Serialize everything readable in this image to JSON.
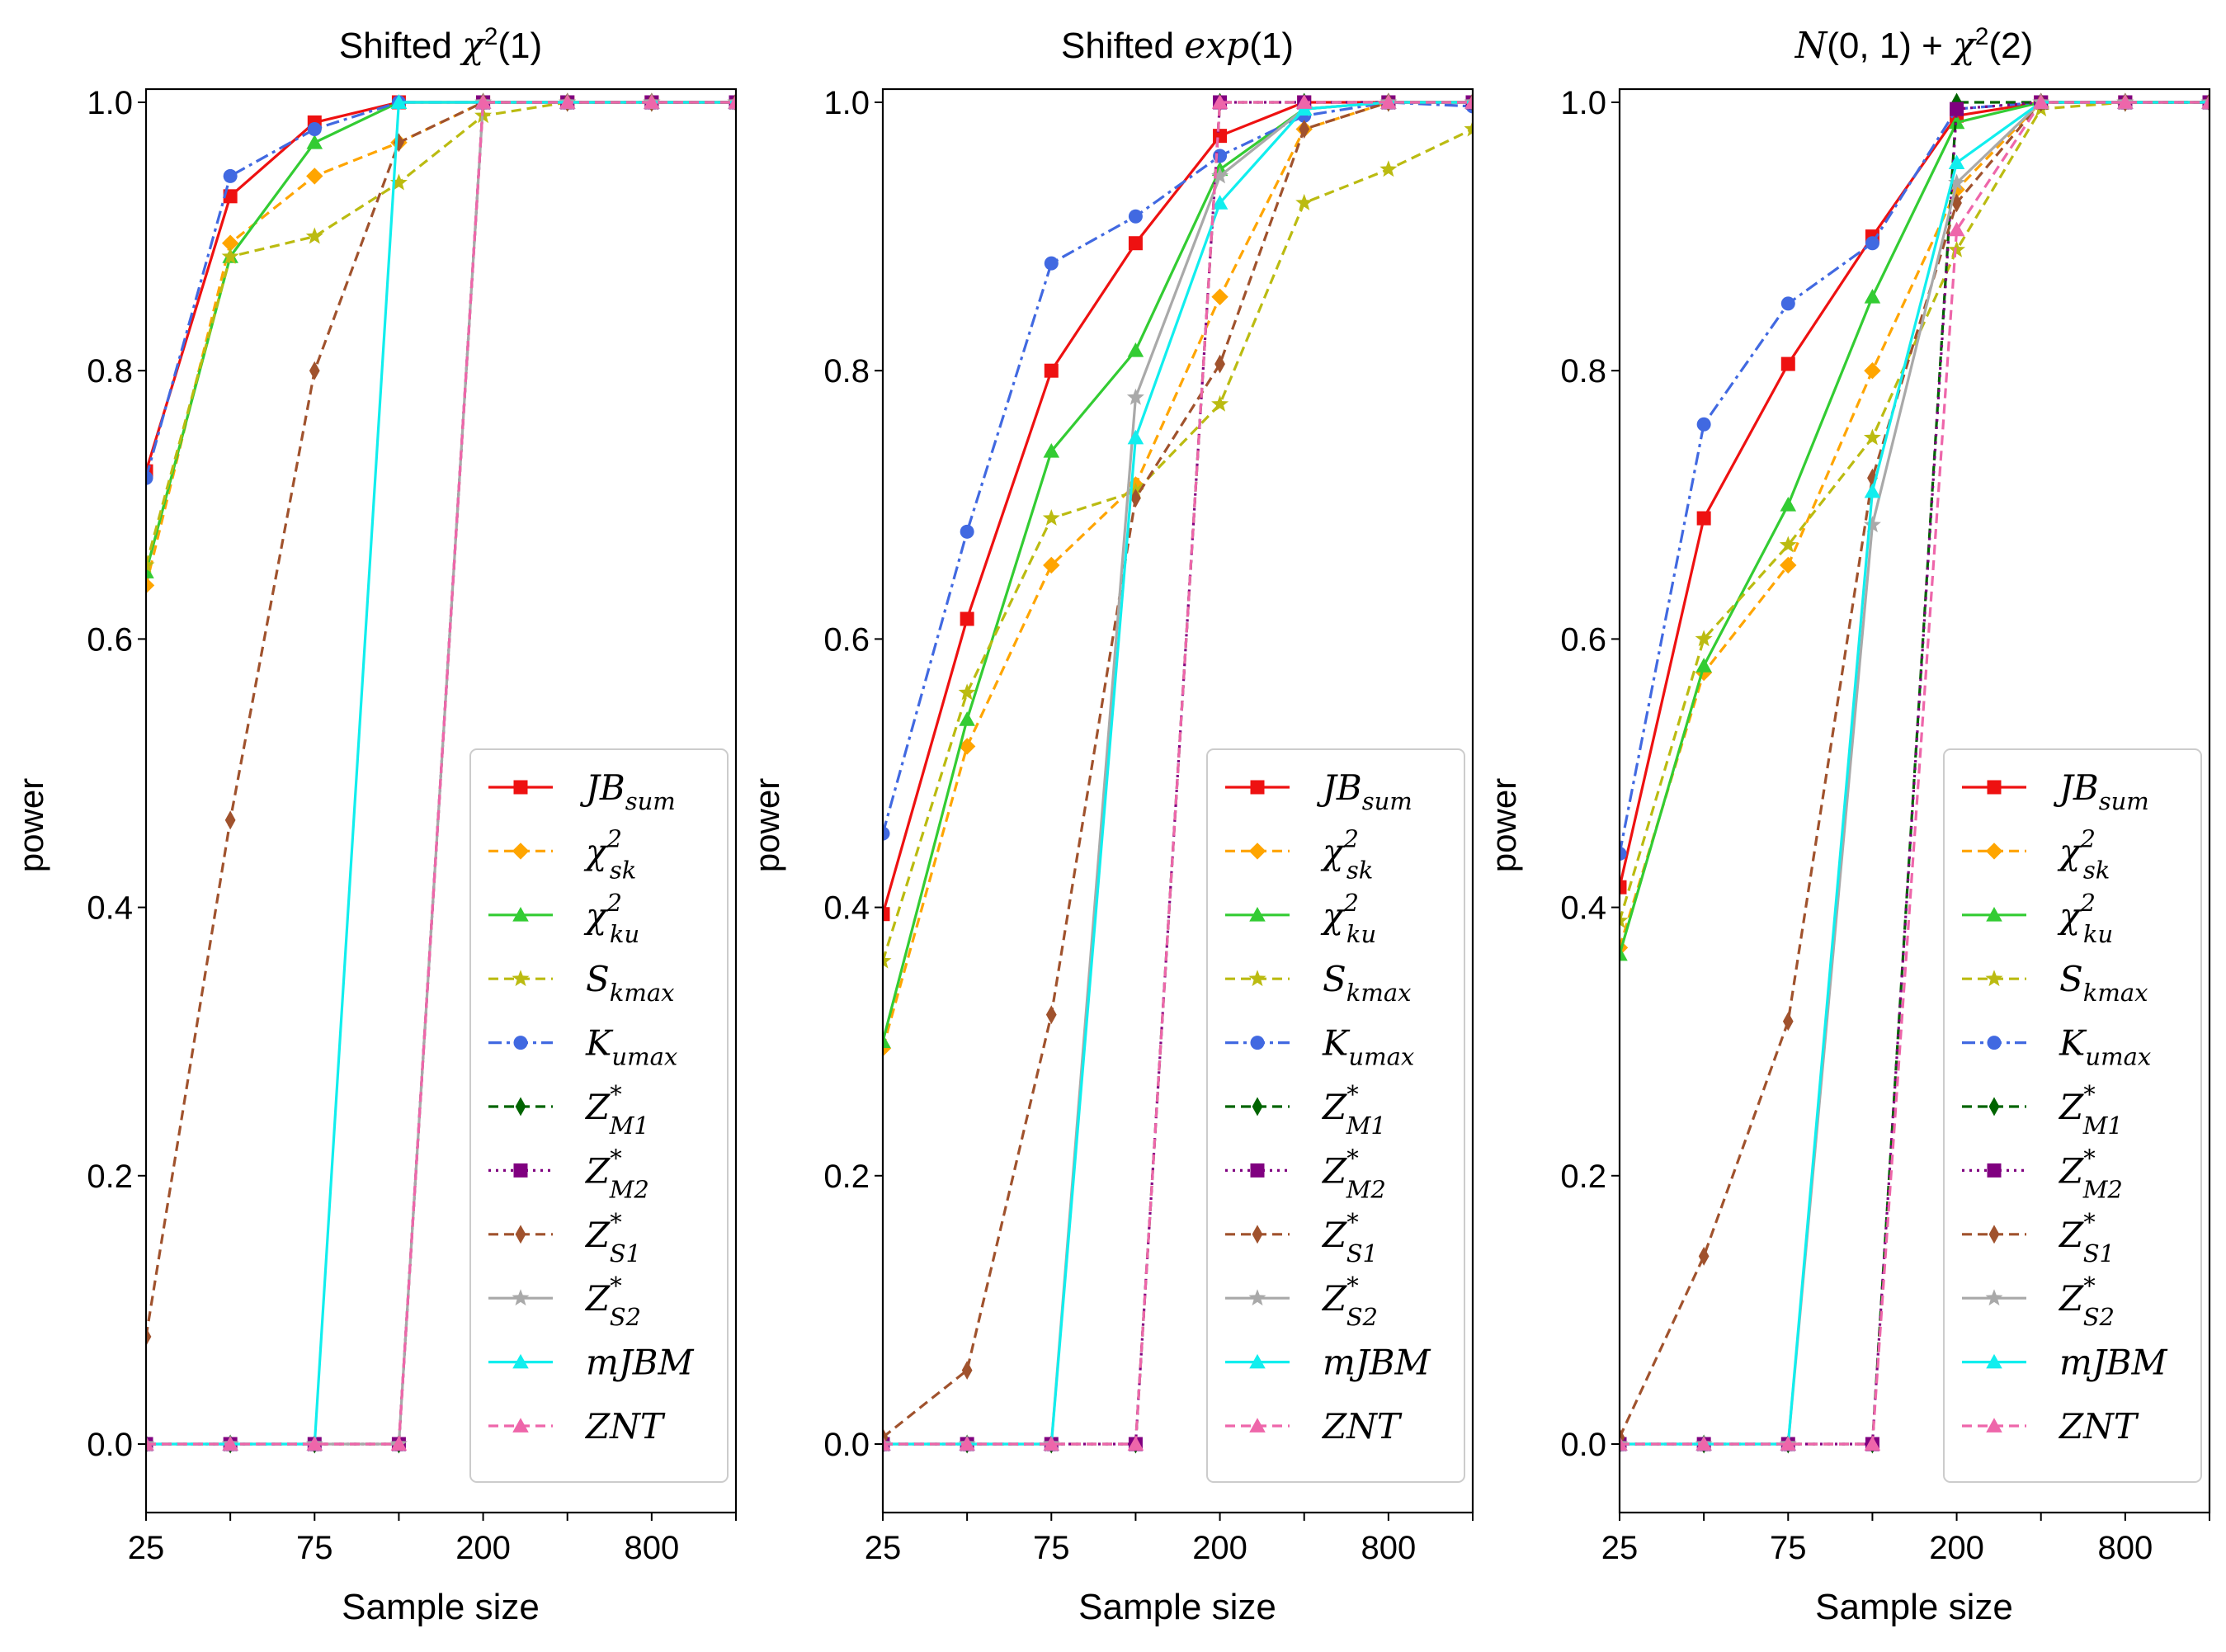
{
  "chart_data": [
    {
      "type": "line",
      "title": "Shifted χ²(1)",
      "xlabel": "Sample size",
      "ylabel": "power",
      "ylim": [
        -0.05,
        1.0
      ],
      "yticks": [
        "0.0",
        "0.2",
        "0.4",
        "0.6",
        "0.8",
        "1.0"
      ],
      "x_index": [
        0,
        1,
        2,
        3,
        4,
        5,
        6,
        7
      ],
      "xtick_labels": [
        "25",
        "",
        "75",
        "",
        "200",
        "",
        "800",
        ""
      ],
      "legend_loc": "lower right",
      "series": [
        {
          "key": "JBsum",
          "values": [
            0.725,
            0.93,
            0.985,
            1.0,
            1.0,
            1.0,
            1.0,
            1.0
          ]
        },
        {
          "key": "chisk",
          "values": [
            0.64,
            0.895,
            0.945,
            0.97,
            1.0,
            1.0,
            1.0,
            1.0
          ]
        },
        {
          "key": "chiku",
          "values": [
            0.65,
            0.885,
            0.97,
            1.0,
            1.0,
            1.0,
            1.0,
            1.0
          ]
        },
        {
          "key": "Skmax",
          "values": [
            0.655,
            0.885,
            0.9,
            0.94,
            0.99,
            1.0,
            1.0,
            1.0
          ]
        },
        {
          "key": "Kumax",
          "values": [
            0.72,
            0.945,
            0.98,
            1.0,
            1.0,
            1.0,
            1.0,
            1.0
          ]
        },
        {
          "key": "ZM1",
          "values": [
            0.0,
            0.0,
            0.0,
            0.0,
            1.0,
            1.0,
            1.0,
            1.0
          ]
        },
        {
          "key": "ZM2",
          "values": [
            0.0,
            0.0,
            0.0,
            0.0,
            1.0,
            1.0,
            1.0,
            1.0
          ]
        },
        {
          "key": "ZS1",
          "values": [
            0.08,
            0.465,
            0.8,
            0.97,
            1.0,
            1.0,
            1.0,
            1.0
          ]
        },
        {
          "key": "ZS2",
          "values": [
            0.0,
            0.0,
            0.0,
            0.0,
            1.0,
            1.0,
            1.0,
            1.0
          ]
        },
        {
          "key": "mJBM",
          "values": [
            0.0,
            0.0,
            0.0,
            1.0,
            1.0,
            1.0,
            1.0,
            1.0
          ]
        },
        {
          "key": "ZNT",
          "values": [
            0.0,
            0.0,
            0.0,
            0.0,
            1.0,
            1.0,
            1.0,
            1.0
          ]
        }
      ]
    },
    {
      "type": "line",
      "title": "Shifted exp(1)",
      "xlabel": "Sample size",
      "ylabel": "power",
      "ylim": [
        -0.05,
        1.0
      ],
      "yticks": [
        "0.0",
        "0.2",
        "0.4",
        "0.6",
        "0.8",
        "1.0"
      ],
      "x_index": [
        0,
        1,
        2,
        3,
        4,
        5,
        6,
        7
      ],
      "xtick_labels": [
        "25",
        "",
        "75",
        "",
        "200",
        "",
        "800",
        ""
      ],
      "legend_loc": "lower right",
      "series": [
        {
          "key": "JBsum",
          "values": [
            0.395,
            0.615,
            0.8,
            0.895,
            0.975,
            1.0,
            1.0,
            1.0
          ]
        },
        {
          "key": "chisk",
          "values": [
            0.295,
            0.52,
            0.655,
            0.715,
            0.855,
            0.98,
            1.0,
            1.0
          ]
        },
        {
          "key": "chiku",
          "values": [
            0.3,
            0.54,
            0.74,
            0.815,
            0.95,
            0.995,
            1.0,
            1.0
          ]
        },
        {
          "key": "Skmax",
          "values": [
            0.36,
            0.56,
            0.69,
            0.71,
            0.775,
            0.925,
            0.95,
            0.98
          ]
        },
        {
          "key": "Kumax",
          "values": [
            0.455,
            0.68,
            0.88,
            0.915,
            0.96,
            0.99,
            1.0,
            0.997
          ]
        },
        {
          "key": "ZM1",
          "values": [
            0.0,
            0.0,
            0.0,
            0.0,
            1.0,
            1.0,
            1.0,
            1.0
          ]
        },
        {
          "key": "ZM2",
          "values": [
            0.0,
            0.0,
            0.0,
            0.0,
            1.0,
            1.0,
            1.0,
            1.0
          ]
        },
        {
          "key": "ZS1",
          "values": [
            0.005,
            0.055,
            0.32,
            0.705,
            0.805,
            0.98,
            1.0,
            1.0
          ]
        },
        {
          "key": "ZS2",
          "values": [
            0.0,
            0.0,
            0.0,
            0.78,
            0.945,
            0.995,
            1.0,
            1.0
          ]
        },
        {
          "key": "mJBM",
          "values": [
            0.0,
            0.0,
            0.0,
            0.75,
            0.925,
            0.995,
            1.0,
            1.0
          ]
        },
        {
          "key": "ZNT",
          "values": [
            0.0,
            0.0,
            0.0,
            0.0,
            1.0,
            1.0,
            1.0,
            1.0
          ]
        }
      ]
    },
    {
      "type": "line",
      "title": "N(0,1) + χ²(2)",
      "xlabel": "Sample size",
      "ylabel": "power",
      "ylim": [
        -0.05,
        1.0
      ],
      "yticks": [
        "0.0",
        "0.2",
        "0.4",
        "0.6",
        "0.8",
        "1.0"
      ],
      "x_index": [
        0,
        1,
        2,
        3,
        4,
        5,
        6,
        7
      ],
      "xtick_labels": [
        "25",
        "",
        "75",
        "",
        "200",
        "",
        "800",
        ""
      ],
      "legend_loc": "lower right",
      "series": [
        {
          "key": "JBsum",
          "values": [
            0.415,
            0.69,
            0.805,
            0.9,
            0.99,
            1.0,
            1.0,
            1.0
          ]
        },
        {
          "key": "chisk",
          "values": [
            0.37,
            0.575,
            0.655,
            0.8,
            0.935,
            1.0,
            1.0,
            1.0
          ]
        },
        {
          "key": "chiku",
          "values": [
            0.365,
            0.58,
            0.7,
            0.855,
            0.985,
            1.0,
            1.0,
            1.0
          ]
        },
        {
          "key": "Skmax",
          "values": [
            0.39,
            0.6,
            0.67,
            0.75,
            0.89,
            0.995,
            1.0,
            1.0
          ]
        },
        {
          "key": "Kumax",
          "values": [
            0.44,
            0.76,
            0.85,
            0.895,
            0.995,
            1.0,
            1.0,
            1.0
          ]
        },
        {
          "key": "ZM1",
          "values": [
            0.0,
            0.0,
            0.0,
            0.0,
            1.0,
            1.0,
            1.0,
            1.0
          ]
        },
        {
          "key": "ZM2",
          "values": [
            0.0,
            0.0,
            0.0,
            0.0,
            0.995,
            1.0,
            1.0,
            1.0
          ]
        },
        {
          "key": "ZS1",
          "values": [
            0.005,
            0.14,
            0.315,
            0.72,
            0.925,
            1.0,
            1.0,
            1.0
          ]
        },
        {
          "key": "ZS2",
          "values": [
            0.0,
            0.0,
            0.0,
            0.685,
            0.94,
            1.0,
            1.0,
            1.0
          ]
        },
        {
          "key": "mJBM",
          "values": [
            0.0,
            0.0,
            0.0,
            0.71,
            0.955,
            1.0,
            1.0,
            1.0
          ]
        },
        {
          "key": "ZNT",
          "values": [
            0.0,
            0.0,
            0.0,
            0.0,
            0.905,
            1.0,
            1.0,
            1.0
          ]
        }
      ]
    }
  ],
  "legend": [
    {
      "key": "JBsum",
      "base": "JB",
      "sub": "sum",
      "sup": "",
      "color": "#ee1111",
      "marker": "square",
      "dash": "solid"
    },
    {
      "key": "chisk",
      "base": "χ",
      "sub": "sk",
      "sup": "2",
      "color": "#ffa500",
      "marker": "diamond",
      "dash": "dashed"
    },
    {
      "key": "chiku",
      "base": "χ",
      "sub": "ku",
      "sup": "2",
      "color": "#33cc33",
      "marker": "triangle",
      "dash": "solid"
    },
    {
      "key": "Skmax",
      "base": "S",
      "sub": "kmax",
      "sup": "",
      "color": "#bbbb11",
      "marker": "star",
      "dash": "dashed"
    },
    {
      "key": "Kumax",
      "base": "K",
      "sub": "umax",
      "sup": "",
      "color": "#4169e1",
      "marker": "circle",
      "dash": "dashdot"
    },
    {
      "key": "ZM1",
      "base": "Z",
      "sub": "M1",
      "sup": "*",
      "color": "#006400",
      "marker": "thindiamond",
      "dash": "dashed"
    },
    {
      "key": "ZM2",
      "base": "Z",
      "sub": "M2",
      "sup": "*",
      "color": "#800080",
      "marker": "square",
      "dash": "dotted"
    },
    {
      "key": "ZS1",
      "base": "Z",
      "sub": "S1",
      "sup": "*",
      "color": "#a0522d",
      "marker": "thindiamond",
      "dash": "dashed"
    },
    {
      "key": "ZS2",
      "base": "Z",
      "sub": "S2",
      "sup": "*",
      "color": "#a9a9a9",
      "marker": "star",
      "dash": "solid"
    },
    {
      "key": "mJBM",
      "base": "mJBM",
      "sub": "",
      "sup": "",
      "color": "#11eeee",
      "marker": "triangle",
      "dash": "solid"
    },
    {
      "key": "ZNT",
      "base": "ZNT",
      "sub": "",
      "sup": "",
      "color": "#ee66aa",
      "marker": "triangle",
      "dash": "dashed"
    }
  ]
}
